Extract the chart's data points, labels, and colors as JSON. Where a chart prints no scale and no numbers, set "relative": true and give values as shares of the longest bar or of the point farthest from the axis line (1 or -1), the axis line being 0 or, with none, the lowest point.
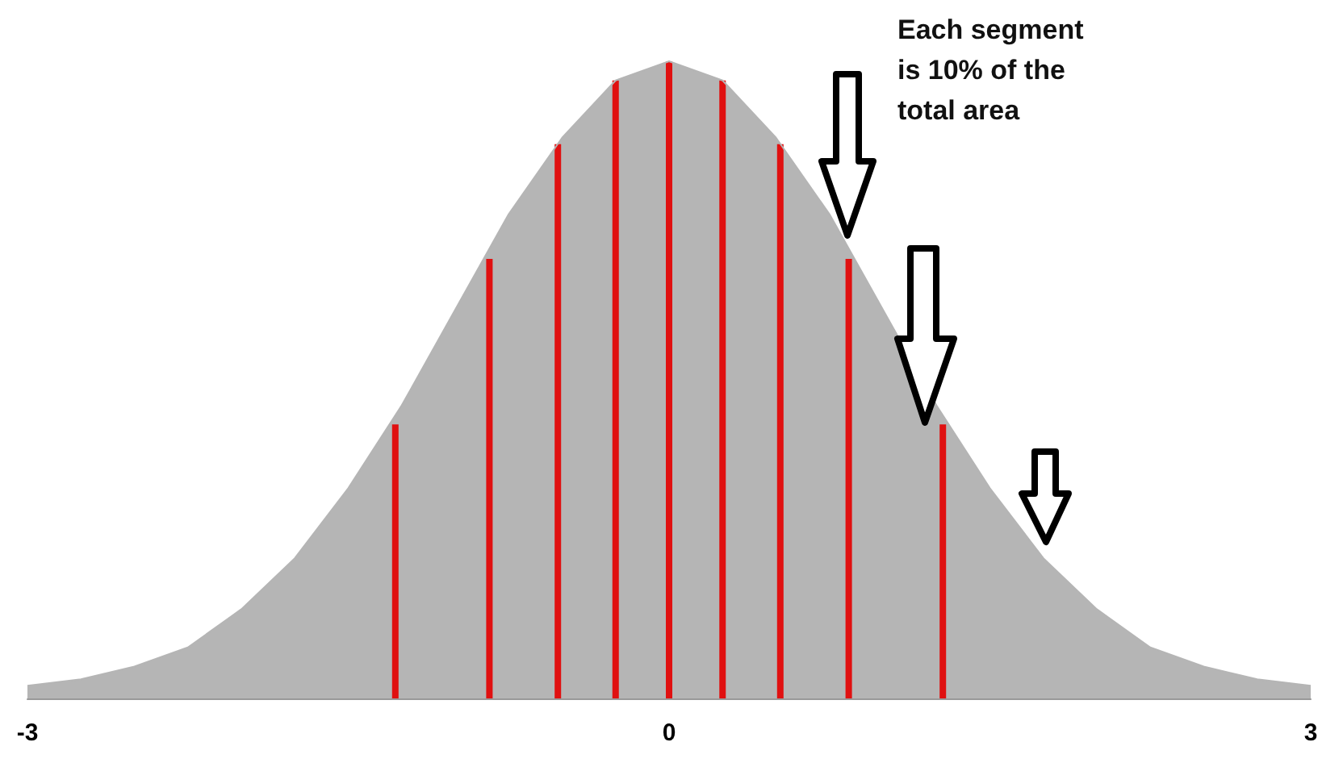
{
  "chart_data": {
    "type": "area",
    "relative": true,
    "xlim": [
      -3,
      3
    ],
    "xticks": [
      -3,
      0,
      3
    ],
    "tick_labels": "x",
    "grid": false,
    "annotations": [
      "Each segment is 10% of the total area"
    ],
    "series": [
      {
        "color": "#b5b5b5",
        "x": [
          -3,
          -2.75,
          -2.5,
          -2.25,
          -2,
          -1.75,
          -1.5,
          -1.25,
          -1,
          -0.75,
          -0.5,
          -0.25,
          0,
          0.25,
          0.5,
          0.75,
          1,
          1.25,
          1.5,
          1.75,
          2,
          2.25,
          2.5,
          2.75,
          3
        ],
        "values": [
          0.02,
          0.03,
          0.05,
          0.08,
          0.14,
          0.22,
          0.33,
          0.46,
          0.61,
          0.76,
          0.88,
          0.97,
          1,
          0.97,
          0.88,
          0.76,
          0.61,
          0.46,
          0.33,
          0.22,
          0.14,
          0.08,
          0.05,
          0.03,
          0.02
        ]
      },
      {
        "type": "bar",
        "color": "#e01010",
        "x": [
          -1.28,
          -0.84,
          -0.52,
          -0.25,
          0,
          0.25,
          0.52,
          0.84,
          1.28
        ],
        "values": [
          0.43,
          0.69,
          0.87,
          0.97,
          1,
          0.97,
          0.87,
          0.69,
          0.43
        ]
      }
    ]
  }
}
